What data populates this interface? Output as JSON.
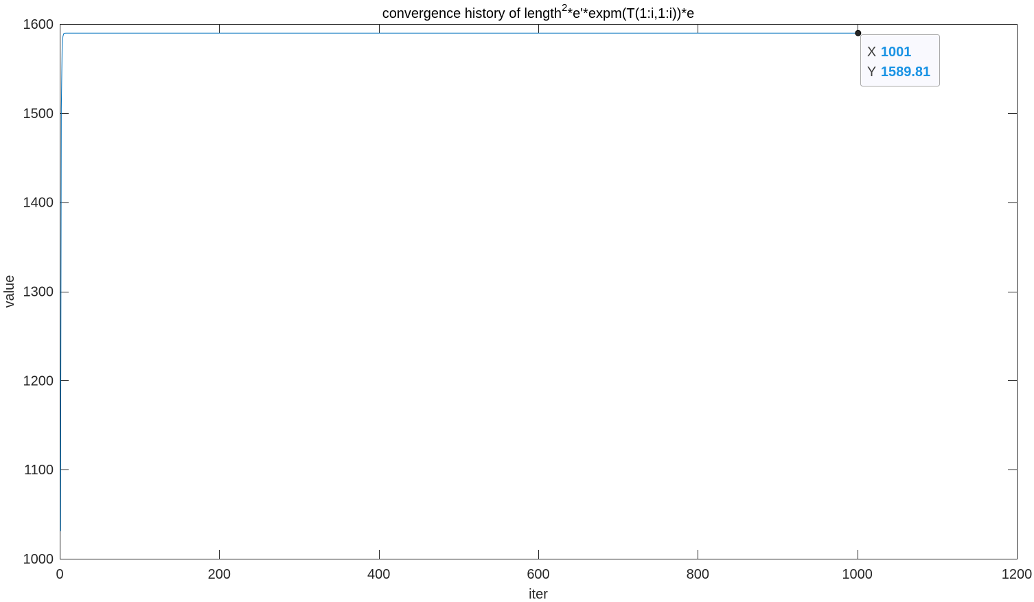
{
  "chart_data": {
    "type": "line",
    "title": {
      "text": "convergence history of length",
      "superscript": "2",
      "text_after": "*e'*expm(T(1:i,1:i))*e"
    },
    "xlabel": "iter",
    "ylabel": "value",
    "xlim": [
      0,
      1200
    ],
    "ylim": [
      1000,
      1600
    ],
    "x_ticks": [
      0,
      200,
      400,
      600,
      800,
      1000,
      1200
    ],
    "y_ticks": [
      1000,
      1100,
      1200,
      1300,
      1400,
      1500,
      1600
    ],
    "grid": false,
    "series": [
      {
        "x": [
          1,
          2,
          3,
          4,
          5,
          6,
          8,
          1001
        ],
        "y": [
          1031,
          1505,
          1572,
          1586,
          1589.2,
          1589.7,
          1589.8,
          1589.81
        ]
      }
    ],
    "datatip": {
      "x_label": "X",
      "x_value": 1001,
      "y_label": "Y",
      "y_value": 1589.81
    }
  },
  "colors": {
    "line": "#0072BD",
    "axes": "#262626",
    "datatip_label": "#404040",
    "datatip_value": "#1a93e4",
    "datatip_background": "#f9f9fe",
    "datatip_border": "#a9a9a9",
    "datatip_marker": "#262626"
  }
}
